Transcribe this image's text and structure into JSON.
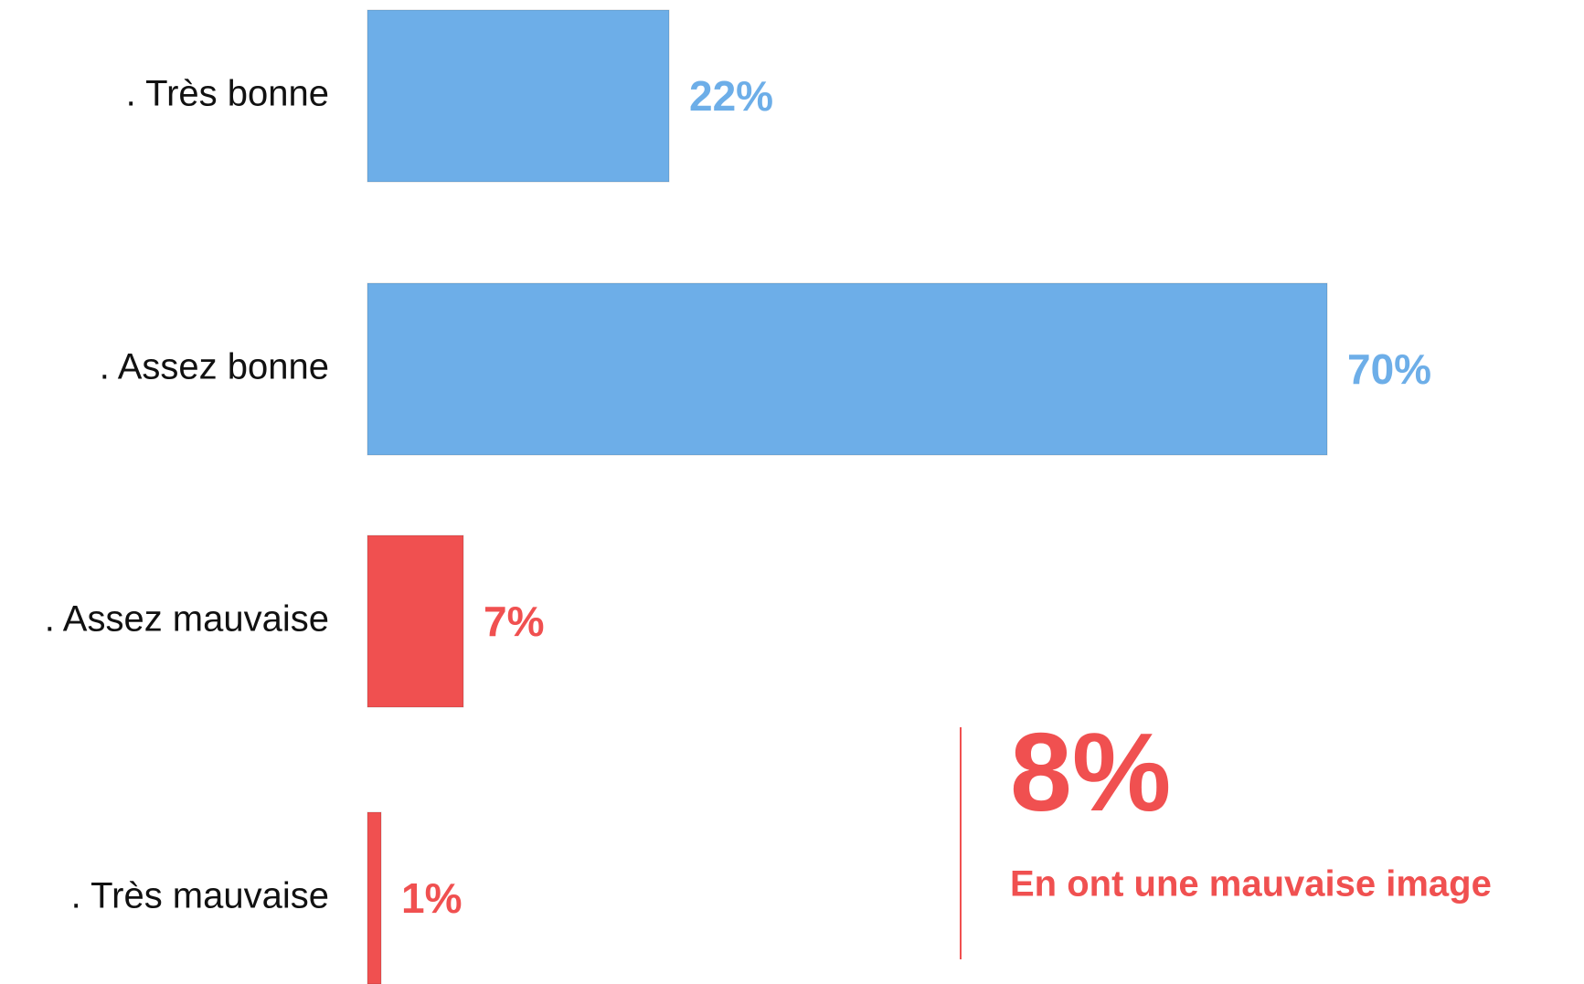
{
  "chart_data": {
    "type": "hbar",
    "categories": [
      ". Très bonne",
      ". Assez bonne",
      ". Assez mauvaise",
      ". Très mauvaise"
    ],
    "values": [
      22,
      70,
      7,
      1
    ],
    "value_labels": [
      "22%",
      "70%",
      "7%",
      "1%"
    ],
    "colors": [
      "#6daee8",
      "#6daee8",
      "#f05050",
      "#f05050"
    ],
    "xlim": [
      0,
      80
    ],
    "callout": {
      "value": "8%",
      "text": "En ont une mauvaise image",
      "color": "#f05050"
    }
  }
}
